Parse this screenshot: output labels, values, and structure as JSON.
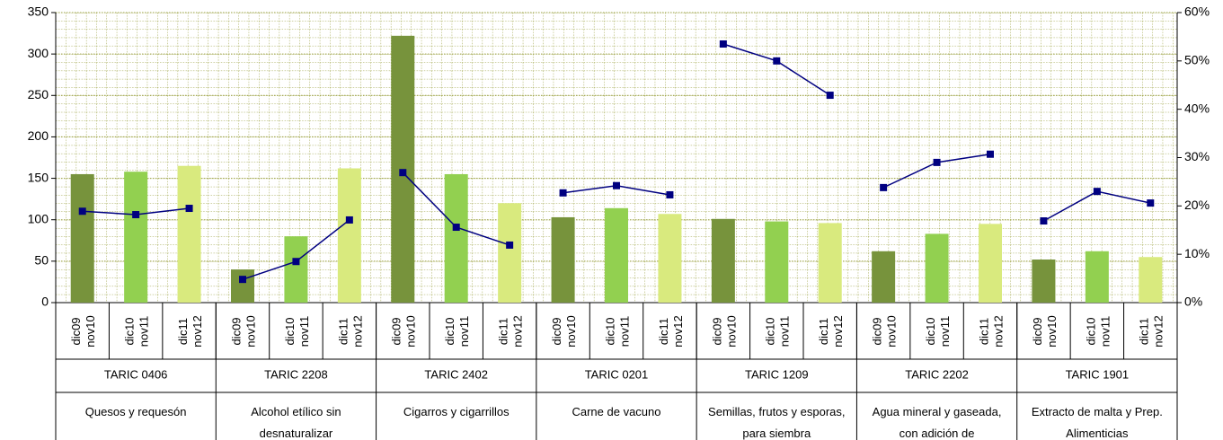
{
  "chart_data": {
    "type": "combo",
    "categories": [
      [
        "dic09",
        "nov10"
      ],
      [
        "dic10",
        "nov11"
      ],
      [
        "dic11",
        "nov12"
      ],
      [
        "dic09",
        "nov10"
      ],
      [
        "dic10",
        "nov11"
      ],
      [
        "dic11",
        "nov12"
      ],
      [
        "dic09",
        "nov10"
      ],
      [
        "dic10",
        "nov11"
      ],
      [
        "dic11",
        "nov12"
      ],
      [
        "dic09",
        "nov10"
      ],
      [
        "dic10",
        "nov11"
      ],
      [
        "dic11",
        "nov12"
      ],
      [
        "dic09",
        "nov10"
      ],
      [
        "dic10",
        "nov11"
      ],
      [
        "dic11",
        "nov12"
      ],
      [
        "dic09",
        "nov10"
      ],
      [
        "dic10",
        "nov11"
      ],
      [
        "dic11",
        "nov12"
      ],
      [
        "dic09",
        "nov10"
      ],
      [
        "dic10",
        "nov11"
      ],
      [
        "dic11",
        "nov12"
      ]
    ],
    "groups": [
      {
        "code": "TARIC 0406",
        "name": "Quesos y requesón"
      },
      {
        "code": "TARIC 2208",
        "name": "Alcohol etílico sin desnaturalizar"
      },
      {
        "code": "TARIC 2402",
        "name": "Cigarros y cigarrillos"
      },
      {
        "code": "TARIC 0201",
        "name": "Carne de vacuno"
      },
      {
        "code": "TARIC 1209",
        "name": "Semillas, frutos y esporas, para siembra"
      },
      {
        "code": "TARIC 2202",
        "name": "Agua mineral y gaseada, con adición de"
      },
      {
        "code": "TARIC 1901",
        "name": "Extracto de malta y Prep. Alimenticias"
      }
    ],
    "series": [
      {
        "type": "bar",
        "colors": [
          "#77933c",
          "#92d050",
          "#d9ea7e"
        ],
        "values": [
          155,
          158,
          165,
          40,
          80,
          162,
          322,
          155,
          120,
          103,
          114,
          107,
          101,
          98,
          96,
          62,
          83,
          95,
          52,
          62,
          55
        ]
      },
      {
        "type": "line",
        "axis": "y2",
        "color": "#000080",
        "values": [
          18.9,
          18.2,
          19.5,
          4.8,
          8.5,
          17.1,
          26.9,
          15.6,
          11.9,
          22.7,
          24.2,
          22.3,
          53.5,
          50.0,
          42.9,
          23.8,
          29.0,
          30.7,
          16.9,
          23.0,
          20.6
        ]
      }
    ],
    "ylim": [
      0,
      350
    ],
    "yticks": [
      0,
      50,
      100,
      150,
      200,
      250,
      300,
      350
    ],
    "y2lim": [
      0,
      60
    ],
    "y2ticks": [
      {
        "value": 0,
        "label": "0%"
      },
      {
        "value": 10,
        "label": "10%"
      },
      {
        "value": 20,
        "label": "20%"
      },
      {
        "value": 30,
        "label": "30%"
      },
      {
        "value": 40,
        "label": "40%"
      },
      {
        "value": 50,
        "label": "50%"
      },
      {
        "value": 60,
        "label": "60%"
      }
    ],
    "grid": true
  }
}
